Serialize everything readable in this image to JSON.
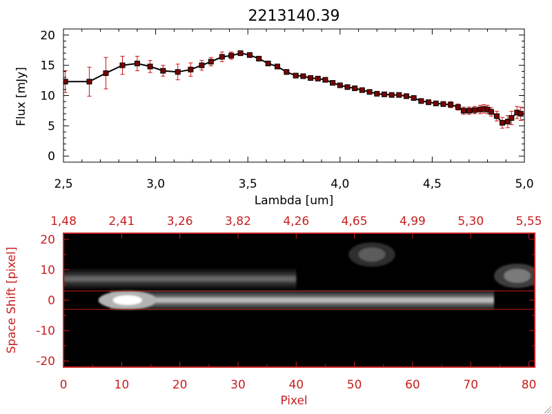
{
  "chart_data": [
    {
      "type": "line",
      "title": "2213140.39",
      "xlabel": "Lambda [um]",
      "ylabel": "Flux [mJy]",
      "xlim": [
        2.5,
        5.0
      ],
      "ylim": [
        -1,
        21
      ],
      "xticks": [
        2.5,
        3.0,
        3.5,
        4.0,
        4.5,
        5.0
      ],
      "xtick_labels": [
        "2,5",
        "3,0",
        "3,5",
        "4,0",
        "4,5",
        "5,0"
      ],
      "yticks": [
        0,
        5,
        10,
        15,
        20
      ],
      "ytick_labels": [
        "0",
        "5",
        "10",
        "15",
        "20"
      ],
      "grid": false,
      "colors": {
        "line": "#000000",
        "marker": "#7a0000",
        "errorbar": "#d01010"
      },
      "series": [
        {
          "x": [
            2.51,
            2.64,
            2.73,
            2.82,
            2.9,
            2.97,
            3.04,
            3.12,
            3.19,
            3.25,
            3.3,
            3.36,
            3.41,
            3.46,
            3.51,
            3.56,
            3.61,
            3.66,
            3.71,
            3.76,
            3.8,
            3.84,
            3.88,
            3.92,
            3.96,
            4.0,
            4.04,
            4.08,
            4.12,
            4.16,
            4.2,
            4.24,
            4.28,
            4.32,
            4.36,
            4.4,
            4.44,
            4.48,
            4.52,
            4.56,
            4.6,
            4.64,
            4.67,
            4.7,
            4.73,
            4.76,
            4.78,
            4.8,
            4.82,
            4.85,
            4.88,
            4.91,
            4.93,
            4.96,
            4.98
          ],
          "y": [
            12.3,
            12.3,
            13.7,
            15.0,
            15.3,
            14.8,
            14.1,
            13.9,
            14.3,
            15.0,
            15.6,
            16.4,
            16.6,
            17.0,
            16.7,
            16.1,
            15.3,
            14.8,
            13.9,
            13.3,
            13.2,
            12.9,
            12.8,
            12.6,
            12.1,
            11.7,
            11.4,
            11.2,
            10.9,
            10.6,
            10.3,
            10.2,
            10.1,
            10.1,
            9.9,
            9.6,
            9.1,
            8.9,
            8.7,
            8.6,
            8.5,
            8.1,
            7.5,
            7.5,
            7.6,
            7.7,
            7.8,
            7.7,
            7.3,
            6.6,
            5.5,
            5.7,
            6.3,
            7.2,
            7.0
          ],
          "yerr": [
            1.8,
            2.4,
            2.6,
            1.5,
            1.2,
            1.0,
            0.9,
            1.3,
            1.1,
            0.8,
            0.7,
            0.8,
            0.6,
            0.4,
            0.4,
            0.4,
            0.4,
            0.4,
            0.4,
            0.4,
            0.3,
            0.3,
            0.3,
            0.3,
            0.3,
            0.3,
            0.3,
            0.3,
            0.3,
            0.3,
            0.3,
            0.3,
            0.3,
            0.3,
            0.4,
            0.4,
            0.4,
            0.4,
            0.4,
            0.4,
            0.5,
            0.5,
            0.6,
            0.6,
            0.6,
            0.7,
            0.7,
            0.7,
            0.7,
            0.8,
            0.9,
            1.0,
            1.1,
            1.0,
            1.1
          ]
        }
      ]
    },
    {
      "type": "heatmap",
      "xlabel": "Pixel",
      "ylabel": "Space Shift [pixel]",
      "xlim": [
        0,
        81
      ],
      "ylim": [
        -22,
        22
      ],
      "xticks": [
        0,
        10,
        20,
        30,
        40,
        50,
        60,
        70,
        80
      ],
      "xtick_labels": [
        "0",
        "10",
        "20",
        "30",
        "40",
        "50",
        "60",
        "70",
        "80"
      ],
      "yticks": [
        -20,
        -10,
        0,
        10,
        20
      ],
      "ytick_labels": [
        "-20",
        "-10",
        "0",
        "10",
        "20"
      ],
      "top_axis_ticks": [
        0,
        10,
        20,
        30,
        40,
        50,
        60,
        70,
        80
      ],
      "top_axis_labels": [
        "1,48",
        "2,41",
        "3,26",
        "3,82",
        "4,26",
        "4,65",
        "4,99",
        "5,30",
        "5,55"
      ],
      "extraction_window": [
        -3,
        3
      ],
      "colormap": "grayscale",
      "colors": {
        "axes": "#c81e1e",
        "background": "#000000"
      },
      "features": [
        {
          "kind": "trace",
          "x": [
            8,
            74
          ],
          "y": 0,
          "peak_x": 11,
          "peak_intensity": 1.0
        },
        {
          "kind": "trace",
          "x": [
            0,
            40
          ],
          "y": 7,
          "peak_intensity": 0.55
        },
        {
          "kind": "blob",
          "x": 53,
          "y": 15,
          "intensity": 0.45
        },
        {
          "kind": "blob",
          "x": 78,
          "y": 8,
          "intensity": 0.6
        }
      ]
    }
  ]
}
